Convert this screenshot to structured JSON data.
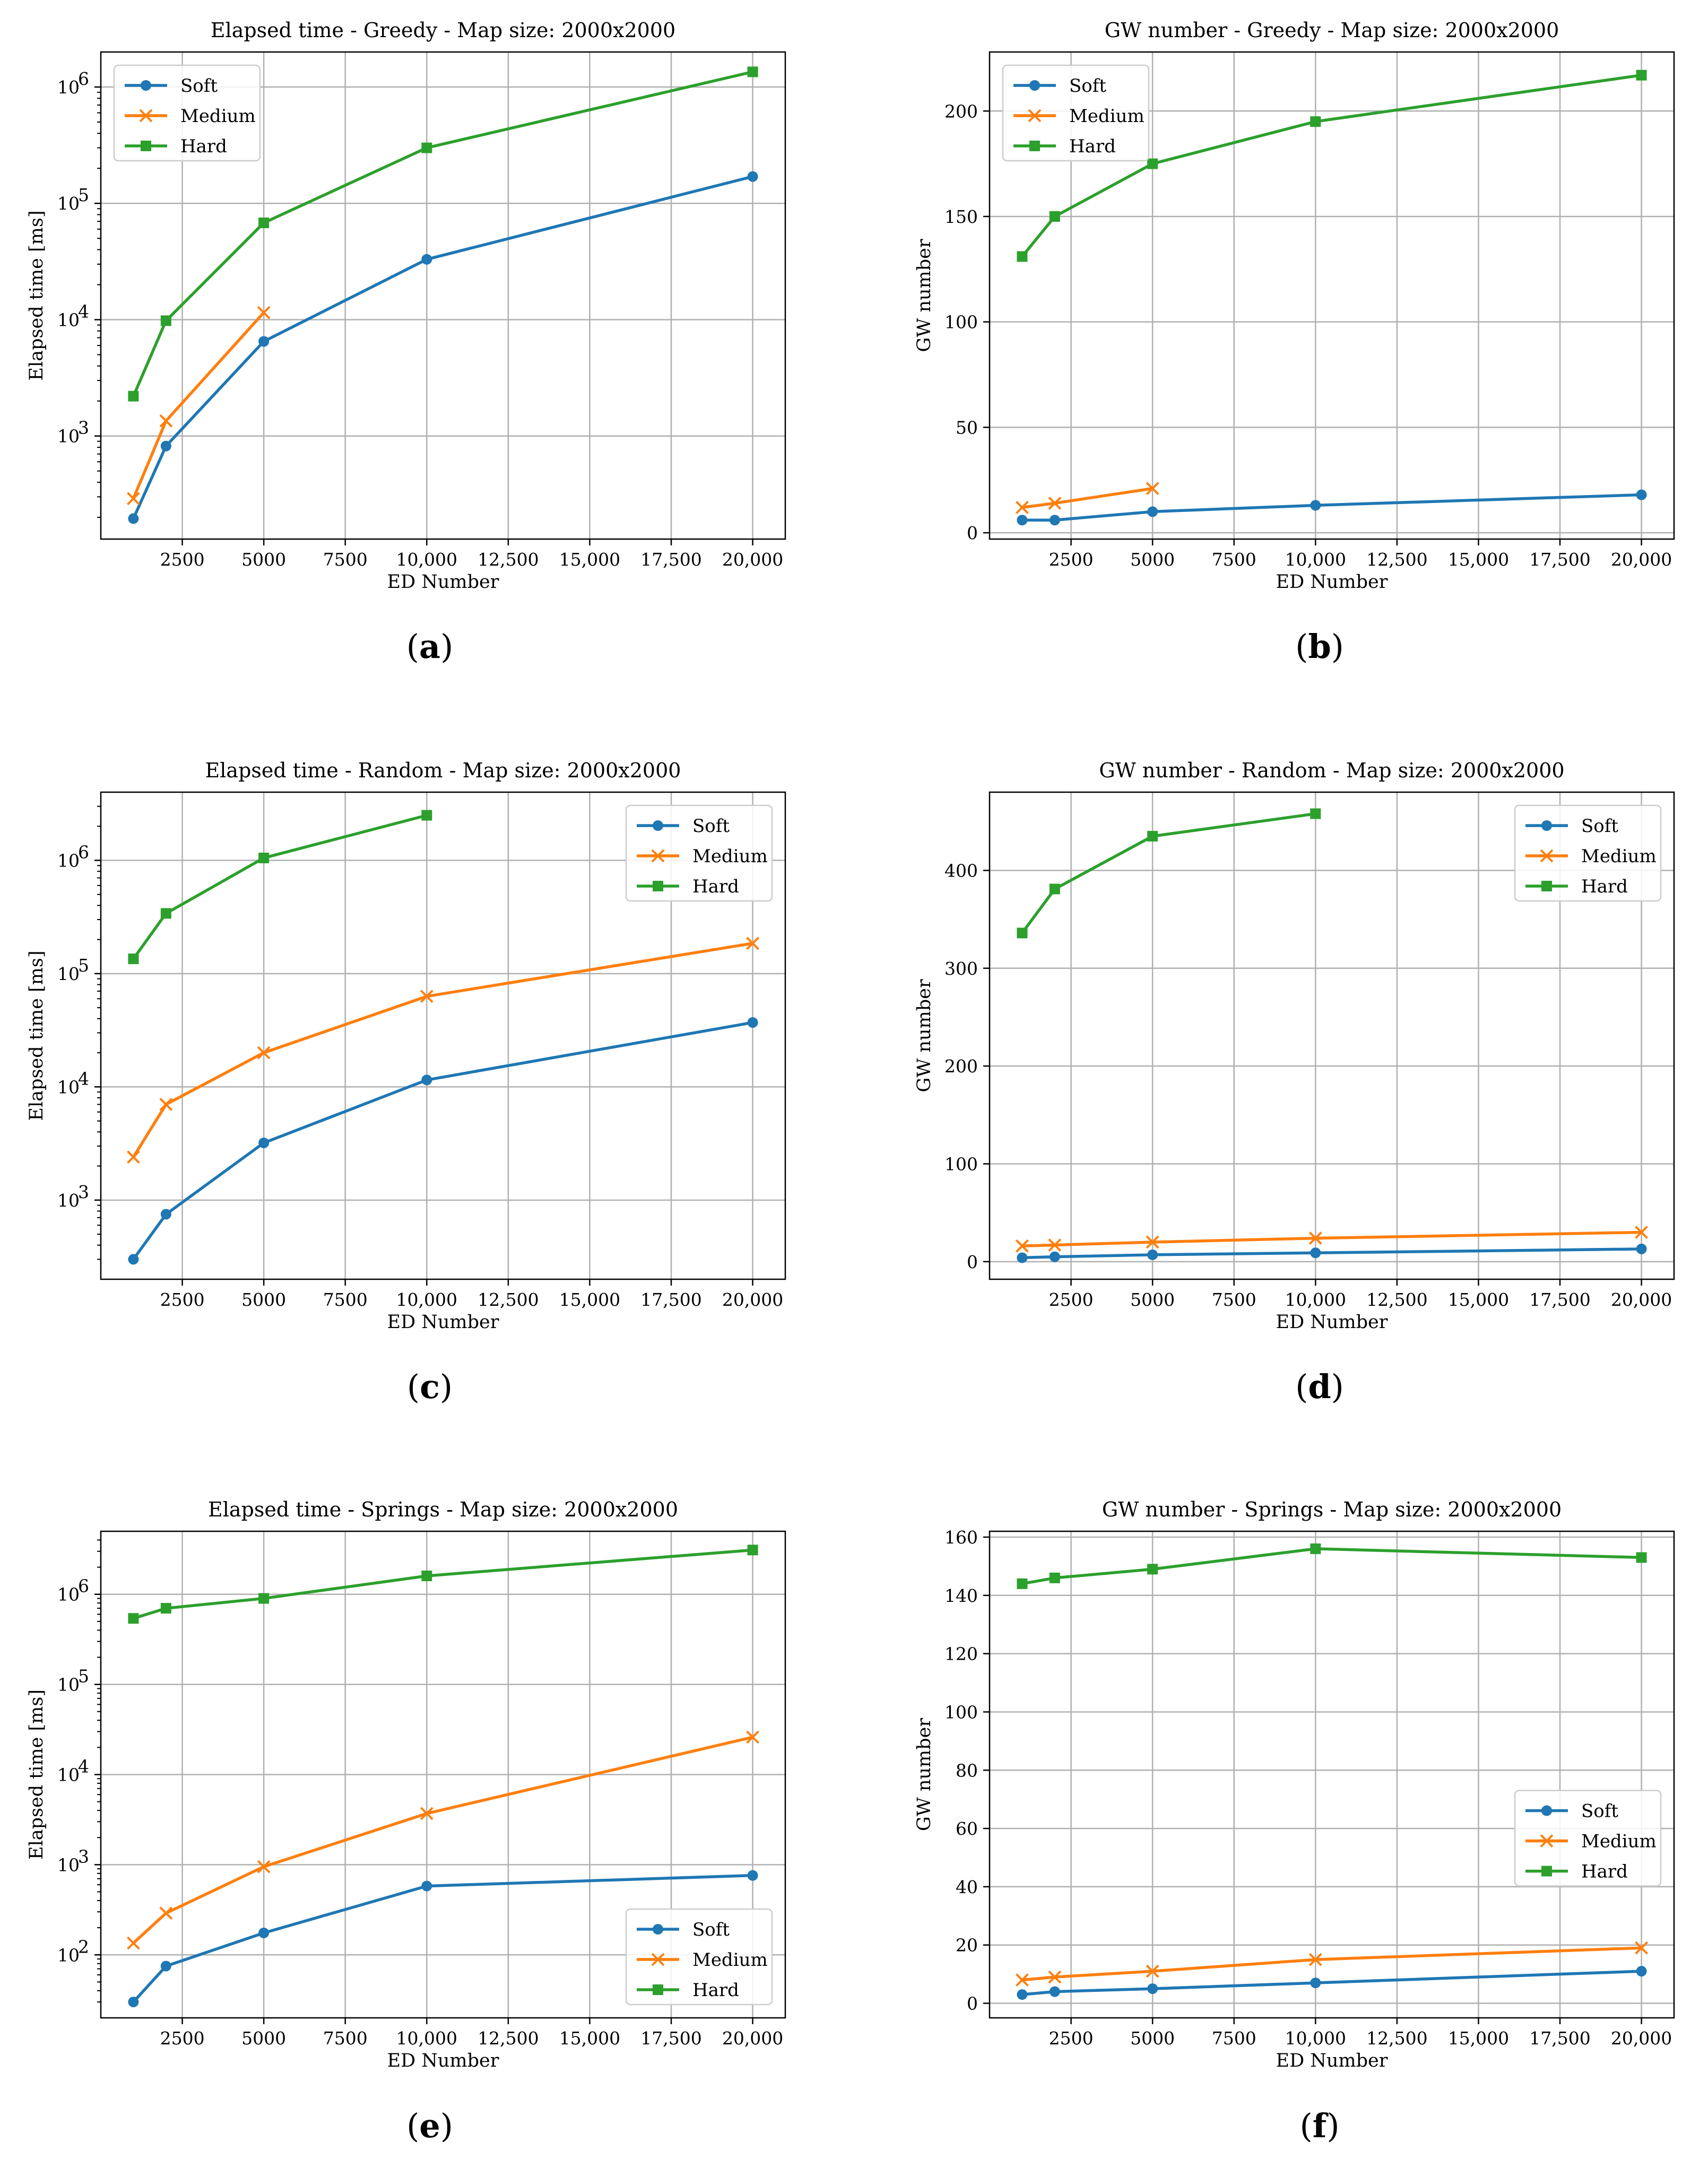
{
  "chart_data": [
    {
      "type": "line",
      "panel": "a",
      "yscale": "log",
      "title": "Elapsed time - Greedy - Map size: 2000x2000",
      "xlabel": "ED Number",
      "ylabel": "Elapsed time [ms]",
      "xlim": [
        0,
        21000
      ],
      "ylim": [
        130,
        2000000
      ],
      "xticks": [
        2500,
        5000,
        7500,
        10000,
        12500,
        15000,
        17500,
        20000
      ],
      "xtick_labels": [
        "2500",
        "5000",
        "7500",
        "10,000",
        "12,500",
        "15,000",
        "17,500",
        "20,000"
      ],
      "yticks": [
        1000,
        10000,
        100000,
        1000000
      ],
      "ytick_labels": [
        "10",
        "10",
        "10",
        "10"
      ],
      "ytick_exps": [
        "3",
        "4",
        "5",
        "6"
      ],
      "legend": "top-left",
      "series": [
        {
          "name": "Soft",
          "color": "#1f77b4",
          "marker": "circle",
          "x": [
            1000,
            2000,
            5000,
            10000,
            20000
          ],
          "values": [
            195,
            820,
            6500,
            33000,
            170000
          ]
        },
        {
          "name": "Medium",
          "color": "#ff7f0e",
          "marker": "x",
          "x": [
            1000,
            2000,
            5000
          ],
          "values": [
            290,
            1350,
            11500
          ]
        },
        {
          "name": "Hard",
          "color": "#2ca02c",
          "marker": "square",
          "x": [
            1000,
            2000,
            5000,
            10000,
            20000
          ],
          "values": [
            2200,
            9800,
            68000,
            300000,
            1350000
          ]
        }
      ]
    },
    {
      "type": "line",
      "panel": "b",
      "yscale": "linear",
      "title": "GW number - Greedy - Map size: 2000x2000",
      "xlabel": "ED Number",
      "ylabel": "GW number",
      "xlim": [
        0,
        21000
      ],
      "ylim": [
        -3,
        228
      ],
      "xticks": [
        2500,
        5000,
        7500,
        10000,
        12500,
        15000,
        17500,
        20000
      ],
      "xtick_labels": [
        "2500",
        "5000",
        "7500",
        "10,000",
        "12,500",
        "15,000",
        "17,500",
        "20,000"
      ],
      "yticks": [
        0,
        50,
        100,
        150,
        200
      ],
      "ytick_labels": [
        "0",
        "50",
        "100",
        "150",
        "200"
      ],
      "legend": "top-left",
      "series": [
        {
          "name": "Soft",
          "color": "#1f77b4",
          "marker": "circle",
          "x": [
            1000,
            2000,
            5000,
            10000,
            20000
          ],
          "values": [
            6,
            6,
            10,
            13,
            18
          ]
        },
        {
          "name": "Medium",
          "color": "#ff7f0e",
          "marker": "x",
          "x": [
            1000,
            2000,
            5000
          ],
          "values": [
            12,
            14,
            21
          ]
        },
        {
          "name": "Hard",
          "color": "#2ca02c",
          "marker": "square",
          "x": [
            1000,
            2000,
            5000,
            10000,
            20000
          ],
          "values": [
            131,
            150,
            175,
            195,
            217
          ]
        }
      ]
    },
    {
      "type": "line",
      "panel": "c",
      "yscale": "log",
      "title": "Elapsed time - Random - Map size: 2000x2000",
      "xlabel": "ED Number",
      "ylabel": "Elapsed time [ms]",
      "xlim": [
        0,
        21000
      ],
      "ylim": [
        200,
        4000000
      ],
      "xticks": [
        2500,
        5000,
        7500,
        10000,
        12500,
        15000,
        17500,
        20000
      ],
      "xtick_labels": [
        "2500",
        "5000",
        "7500",
        "10,000",
        "12,500",
        "15,000",
        "17,500",
        "20,000"
      ],
      "yticks": [
        1000,
        10000,
        100000,
        1000000
      ],
      "ytick_labels": [
        "10",
        "10",
        "10",
        "10"
      ],
      "ytick_exps": [
        "3",
        "4",
        "5",
        "6"
      ],
      "legend": "top-right",
      "series": [
        {
          "name": "Soft",
          "color": "#1f77b4",
          "marker": "circle",
          "x": [
            1000,
            2000,
            5000,
            10000,
            20000
          ],
          "values": [
            300,
            750,
            3200,
            11500,
            37000
          ]
        },
        {
          "name": "Medium",
          "color": "#ff7f0e",
          "marker": "x",
          "x": [
            1000,
            2000,
            5000,
            10000,
            20000
          ],
          "values": [
            2400,
            7000,
            20000,
            63000,
            185000
          ]
        },
        {
          "name": "Hard",
          "color": "#2ca02c",
          "marker": "square",
          "x": [
            1000,
            2000,
            5000,
            10000
          ],
          "values": [
            135000,
            340000,
            1050000,
            2500000
          ]
        }
      ]
    },
    {
      "type": "line",
      "panel": "d",
      "yscale": "linear",
      "title": "GW number - Random - Map size: 2000x2000",
      "xlabel": "ED Number",
      "ylabel": "GW number",
      "xlim": [
        0,
        21000
      ],
      "ylim": [
        -18,
        480
      ],
      "xticks": [
        2500,
        5000,
        7500,
        10000,
        12500,
        15000,
        17500,
        20000
      ],
      "xtick_labels": [
        "2500",
        "5000",
        "7500",
        "10,000",
        "12,500",
        "15,000",
        "17,500",
        "20,000"
      ],
      "yticks": [
        0,
        100,
        200,
        300,
        400
      ],
      "ytick_labels": [
        "0",
        "100",
        "200",
        "300",
        "400"
      ],
      "legend": "top-right",
      "series": [
        {
          "name": "Soft",
          "color": "#1f77b4",
          "marker": "circle",
          "x": [
            1000,
            2000,
            5000,
            10000,
            20000
          ],
          "values": [
            4,
            5,
            7,
            9,
            13
          ]
        },
        {
          "name": "Medium",
          "color": "#ff7f0e",
          "marker": "x",
          "x": [
            1000,
            2000,
            5000,
            10000,
            20000
          ],
          "values": [
            16,
            17,
            20,
            24,
            30
          ]
        },
        {
          "name": "Hard",
          "color": "#2ca02c",
          "marker": "square",
          "x": [
            1000,
            2000,
            5000,
            10000
          ],
          "values": [
            336,
            381,
            435,
            458
          ]
        }
      ]
    },
    {
      "type": "line",
      "panel": "e",
      "yscale": "log",
      "title": "Elapsed time - Springs - Map size: 2000x2000",
      "xlabel": "ED Number",
      "ylabel": "Elapsed time [ms]",
      "xlim": [
        0,
        21000
      ],
      "ylim": [
        20,
        5000000
      ],
      "xticks": [
        2500,
        5000,
        7500,
        10000,
        12500,
        15000,
        17500,
        20000
      ],
      "xtick_labels": [
        "2500",
        "5000",
        "7500",
        "10,000",
        "12,500",
        "15,000",
        "17,500",
        "20,000"
      ],
      "yticks": [
        100,
        1000,
        10000,
        100000,
        1000000
      ],
      "ytick_labels": [
        "10",
        "10",
        "10",
        "10",
        "10"
      ],
      "ytick_exps": [
        "2",
        "3",
        "4",
        "5",
        "6"
      ],
      "legend": "bottom-right",
      "series": [
        {
          "name": "Soft",
          "color": "#1f77b4",
          "marker": "circle",
          "x": [
            1000,
            2000,
            5000,
            10000,
            20000
          ],
          "values": [
            30,
            75,
            175,
            580,
            760
          ]
        },
        {
          "name": "Medium",
          "color": "#ff7f0e",
          "marker": "x",
          "x": [
            1000,
            2000,
            5000,
            10000,
            20000
          ],
          "values": [
            135,
            290,
            950,
            3700,
            26000
          ]
        },
        {
          "name": "Hard",
          "color": "#2ca02c",
          "marker": "square",
          "x": [
            1000,
            2000,
            5000,
            10000,
            20000
          ],
          "values": [
            540000,
            700000,
            900000,
            1600000,
            3100000
          ]
        }
      ]
    },
    {
      "type": "line",
      "panel": "f",
      "yscale": "linear",
      "title": "GW number - Springs - Map size: 2000x2000",
      "xlabel": "ED Number",
      "ylabel": "GW number",
      "xlim": [
        0,
        21000
      ],
      "ylim": [
        -5,
        162
      ],
      "xticks": [
        2500,
        5000,
        7500,
        10000,
        12500,
        15000,
        17500,
        20000
      ],
      "xtick_labels": [
        "2500",
        "5000",
        "7500",
        "10,000",
        "12,500",
        "15,000",
        "17,500",
        "20,000"
      ],
      "yticks": [
        0,
        20,
        40,
        60,
        80,
        100,
        120,
        140,
        160
      ],
      "ytick_labels": [
        "0",
        "20",
        "40",
        "60",
        "80",
        "100",
        "120",
        "140",
        "160"
      ],
      "legend": "center-right",
      "series": [
        {
          "name": "Soft",
          "color": "#1f77b4",
          "marker": "circle",
          "x": [
            1000,
            2000,
            5000,
            10000,
            20000
          ],
          "values": [
            3,
            4,
            5,
            7,
            11
          ]
        },
        {
          "name": "Medium",
          "color": "#ff7f0e",
          "marker": "x",
          "x": [
            1000,
            2000,
            5000,
            10000,
            20000
          ],
          "values": [
            8,
            9,
            11,
            15,
            19
          ]
        },
        {
          "name": "Hard",
          "color": "#2ca02c",
          "marker": "square",
          "x": [
            1000,
            2000,
            5000,
            10000,
            20000
          ],
          "values": [
            144,
            146,
            149,
            156,
            153
          ]
        }
      ]
    }
  ],
  "panel_labels": [
    {
      "open": "(",
      "letter": "a",
      "close": ")"
    },
    {
      "open": "(",
      "letter": "b",
      "close": ")"
    },
    {
      "open": "(",
      "letter": "c",
      "close": ")"
    },
    {
      "open": "(",
      "letter": "d",
      "close": ")"
    },
    {
      "open": "(",
      "letter": "e",
      "close": ")"
    },
    {
      "open": "(",
      "letter": "f",
      "close": ")"
    }
  ]
}
